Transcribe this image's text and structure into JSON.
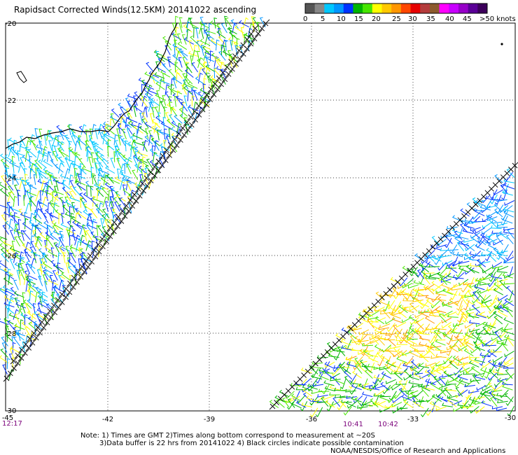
{
  "title": "Rapidsact Corrected Winds(12.5KM) 20141022 ascending",
  "colorbar": {
    "ticks": [
      "0",
      "5",
      "10",
      "15",
      "20",
      "25",
      "30",
      "35",
      "40",
      "45"
    ],
    "max_label": ">50 knots",
    "colors": [
      "#555555",
      "#888888",
      "#00c8ff",
      "#0096ff",
      "#0032ff",
      "#00b400",
      "#46e600",
      "#ffff00",
      "#ffc800",
      "#ff9600",
      "#ff4600",
      "#e60000",
      "#b43c3c",
      "#8c5a2d",
      "#ff00ff",
      "#c800ff",
      "#9600c8",
      "#5a0096",
      "#3c005a"
    ]
  },
  "map": {
    "lon_labels": [
      "-45",
      "-42",
      "-39",
      "-36",
      "-33",
      "-30"
    ],
    "lat_labels": [
      "-20",
      "-22",
      "-24",
      "-26",
      "-28",
      "-30"
    ],
    "time_labels": [
      "12:17",
      "10:41",
      "10:42"
    ]
  },
  "notes": {
    "line1": "Note: 1) Times are GMT 2)Times along bottom correspond to measurement at ~20S",
    "line2": "3)Data buffer is 22 hrs from 20141022 4) Black circles indicate possible contamination",
    "credit": "NOAA/NESDIS/Office of Research and Applications"
  }
}
